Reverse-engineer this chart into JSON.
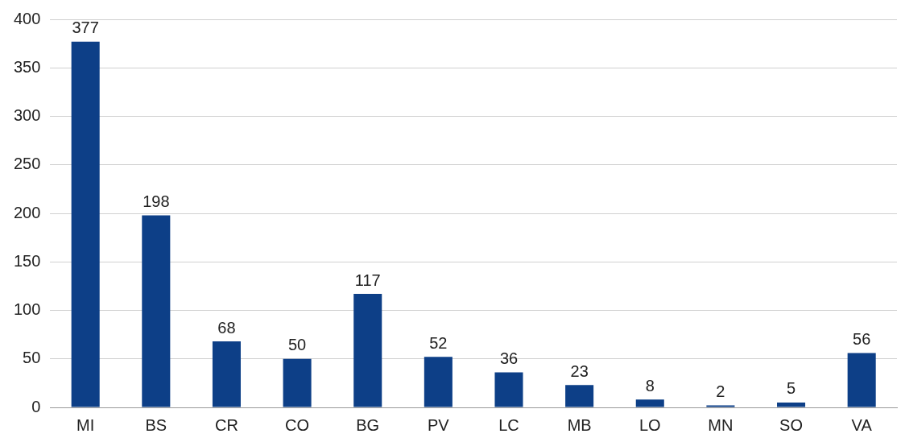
{
  "chart_data": {
    "type": "bar",
    "categories": [
      "MI",
      "BS",
      "CR",
      "CO",
      "BG",
      "PV",
      "LC",
      "MB",
      "LO",
      "MN",
      "SO",
      "VA"
    ],
    "values": [
      377,
      198,
      68,
      50,
      117,
      52,
      36,
      23,
      8,
      2,
      5,
      56
    ],
    "color": "#0d3f87",
    "ylim": [
      0,
      400
    ],
    "yticks": [
      0,
      50,
      100,
      150,
      200,
      250,
      300,
      350,
      400
    ],
    "grid": "y",
    "legend": false,
    "data_labels": true
  }
}
